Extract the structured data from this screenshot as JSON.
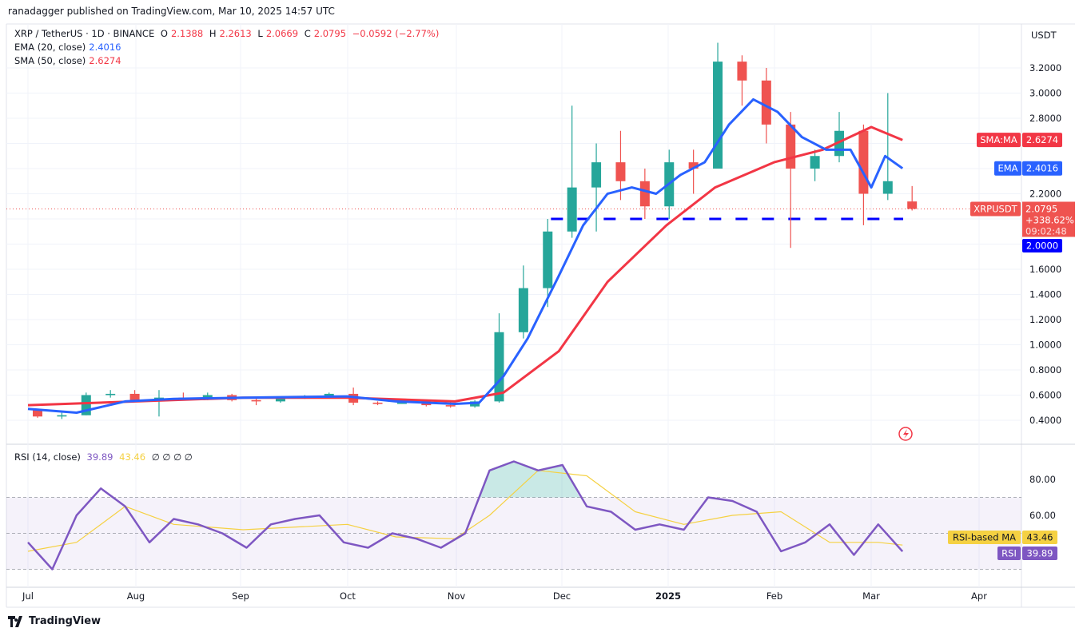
{
  "header": {
    "published": "ranadagger published on TradingView.com, Mar 10, 2025 14:57 UTC"
  },
  "legend": {
    "symbol": "XRP / TetherUS · 1D · BINANCE",
    "open_label": "O",
    "open": "2.1388",
    "high_label": "H",
    "high": "2.2613",
    "low_label": "L",
    "low": "2.0669",
    "close_label": "C",
    "close": "2.0795",
    "change": "−0.0592 (−2.77%)",
    "ema_label": "EMA (20, close)",
    "ema_value": "2.4016",
    "sma_label": "SMA (50, close)",
    "sma_value": "2.6274",
    "rsi_label": "RSI (14, close)",
    "rsi_value": "39.89",
    "rsi_ma_value": "43.46",
    "rsi_extra": "∅ ∅ ∅ ∅"
  },
  "price_axis": {
    "currency": "USDT",
    "ticks": [
      "3.2000",
      "3.0000",
      "2.8000",
      "2.2000",
      "1.6000",
      "1.4000",
      "1.2000",
      "1.0000",
      "0.8000",
      "0.6000",
      "0.4000"
    ],
    "tags": {
      "sma_label": "SMA:MA",
      "sma_value": "2.6274",
      "ema_label": "EMA",
      "ema_value": "2.4016",
      "symbol_label": "XRPUSDT",
      "price": "2.0795",
      "change_pct": "+338.62%",
      "countdown": "09:02:48",
      "support": "2.0000"
    }
  },
  "rsi_axis": {
    "ticks": [
      "80.00",
      "60.00"
    ],
    "ma_label": "RSI-based MA",
    "ma_value": "43.46",
    "rsi_label": "RSI",
    "rsi_value": "39.89"
  },
  "time_axis": {
    "labels": [
      "Jul",
      "Aug",
      "Sep",
      "Oct",
      "Nov",
      "Dec",
      "2025",
      "Feb",
      "Mar",
      "Apr"
    ]
  },
  "footer": {
    "brand": "TradingView"
  },
  "colors": {
    "up": "#26a69a",
    "down": "#ef5350",
    "ema": "#2962ff",
    "sma": "#f23645",
    "rsi": "#7e57c2",
    "rsi_ma": "#f5d142",
    "support": "#0000ff"
  },
  "chart_data": [
    {
      "type": "candlestick",
      "title": "XRP / TetherUS · 1D · BINANCE",
      "ylim": [
        0.3,
        3.5
      ],
      "xlim": [
        "2024-06-25",
        "2025-04-10"
      ],
      "grid": true,
      "scale": "linear",
      "candles_weekly_approx": [
        {
          "d": "2024-07-01",
          "o": 0.48,
          "h": 0.49,
          "l": 0.42,
          "c": 0.43
        },
        {
          "d": "2024-07-08",
          "o": 0.43,
          "h": 0.46,
          "l": 0.41,
          "c": 0.44
        },
        {
          "d": "2024-07-15",
          "o": 0.44,
          "h": 0.62,
          "l": 0.44,
          "c": 0.6
        },
        {
          "d": "2024-07-22",
          "o": 0.6,
          "h": 0.64,
          "l": 0.58,
          "c": 0.61
        },
        {
          "d": "2024-07-29",
          "o": 0.61,
          "h": 0.64,
          "l": 0.55,
          "c": 0.56
        },
        {
          "d": "2024-08-05",
          "o": 0.56,
          "h": 0.64,
          "l": 0.43,
          "c": 0.58
        },
        {
          "d": "2024-08-12",
          "o": 0.58,
          "h": 0.62,
          "l": 0.56,
          "c": 0.57
        },
        {
          "d": "2024-08-19",
          "o": 0.57,
          "h": 0.62,
          "l": 0.56,
          "c": 0.6
        },
        {
          "d": "2024-08-26",
          "o": 0.6,
          "h": 0.61,
          "l": 0.55,
          "c": 0.56
        },
        {
          "d": "2024-09-02",
          "o": 0.56,
          "h": 0.58,
          "l": 0.52,
          "c": 0.55
        },
        {
          "d": "2024-09-09",
          "o": 0.55,
          "h": 0.59,
          "l": 0.54,
          "c": 0.58
        },
        {
          "d": "2024-09-16",
          "o": 0.58,
          "h": 0.6,
          "l": 0.57,
          "c": 0.59
        },
        {
          "d": "2024-09-23",
          "o": 0.59,
          "h": 0.62,
          "l": 0.58,
          "c": 0.61
        },
        {
          "d": "2024-09-30",
          "o": 0.61,
          "h": 0.66,
          "l": 0.52,
          "c": 0.54
        },
        {
          "d": "2024-10-07",
          "o": 0.54,
          "h": 0.55,
          "l": 0.52,
          "c": 0.53
        },
        {
          "d": "2024-10-14",
          "o": 0.53,
          "h": 0.56,
          "l": 0.53,
          "c": 0.55
        },
        {
          "d": "2024-10-21",
          "o": 0.55,
          "h": 0.56,
          "l": 0.51,
          "c": 0.52
        },
        {
          "d": "2024-10-28",
          "o": 0.52,
          "h": 0.55,
          "l": 0.5,
          "c": 0.51
        },
        {
          "d": "2024-11-04",
          "o": 0.51,
          "h": 0.56,
          "l": 0.5,
          "c": 0.55
        },
        {
          "d": "2024-11-11",
          "o": 0.55,
          "h": 1.25,
          "l": 0.54,
          "c": 1.1
        },
        {
          "d": "2024-11-18",
          "o": 1.1,
          "h": 1.63,
          "l": 1.05,
          "c": 1.45
        },
        {
          "d": "2024-11-25",
          "o": 1.45,
          "h": 2.0,
          "l": 1.3,
          "c": 1.9
        },
        {
          "d": "2024-12-02",
          "o": 1.9,
          "h": 2.9,
          "l": 1.85,
          "c": 2.25
        },
        {
          "d": "2024-12-09",
          "o": 2.25,
          "h": 2.6,
          "l": 1.9,
          "c": 2.45
        },
        {
          "d": "2024-12-16",
          "o": 2.45,
          "h": 2.7,
          "l": 2.15,
          "c": 2.3
        },
        {
          "d": "2024-12-23",
          "o": 2.3,
          "h": 2.4,
          "l": 2.0,
          "c": 2.1
        },
        {
          "d": "2024-12-30",
          "o": 2.1,
          "h": 2.55,
          "l": 2.0,
          "c": 2.45
        },
        {
          "d": "2025-01-06",
          "o": 2.45,
          "h": 2.55,
          "l": 2.2,
          "c": 2.4
        },
        {
          "d": "2025-01-13",
          "o": 2.4,
          "h": 3.4,
          "l": 2.4,
          "c": 3.25
        },
        {
          "d": "2025-01-20",
          "o": 3.25,
          "h": 3.3,
          "l": 2.9,
          "c": 3.1
        },
        {
          "d": "2025-01-27",
          "o": 3.1,
          "h": 3.2,
          "l": 2.6,
          "c": 2.75
        },
        {
          "d": "2025-02-03",
          "o": 2.75,
          "h": 2.85,
          "l": 1.77,
          "c": 2.4
        },
        {
          "d": "2025-02-10",
          "o": 2.4,
          "h": 2.55,
          "l": 2.3,
          "c": 2.5
        },
        {
          "d": "2025-02-17",
          "o": 2.5,
          "h": 2.85,
          "l": 2.45,
          "c": 2.7
        },
        {
          "d": "2025-02-24",
          "o": 2.7,
          "h": 2.75,
          "l": 1.95,
          "c": 2.2
        },
        {
          "d": "2025-03-03",
          "o": 2.2,
          "h": 3.0,
          "l": 2.15,
          "c": 2.3
        },
        {
          "d": "2025-03-10",
          "o": 2.1388,
          "h": 2.2613,
          "l": 2.0669,
          "c": 2.0795
        }
      ],
      "series": [
        {
          "name": "EMA (20, close)",
          "points": [
            [
              "2024-07-01",
              0.49
            ],
            [
              "2024-07-15",
              0.46
            ],
            [
              "2024-07-29",
              0.55
            ],
            [
              "2024-08-12",
              0.57
            ],
            [
              "2024-09-01",
              0.58
            ],
            [
              "2024-10-01",
              0.59
            ],
            [
              "2024-10-15",
              0.55
            ],
            [
              "2024-11-01",
              0.53
            ],
            [
              "2024-11-08",
              0.54
            ],
            [
              "2024-11-15",
              0.75
            ],
            [
              "2024-11-22",
              1.05
            ],
            [
              "2024-12-01",
              1.55
            ],
            [
              "2024-12-08",
              1.95
            ],
            [
              "2024-12-15",
              2.2
            ],
            [
              "2024-12-22",
              2.25
            ],
            [
              "2024-12-29",
              2.2
            ],
            [
              "2025-01-05",
              2.35
            ],
            [
              "2025-01-12",
              2.45
            ],
            [
              "2025-01-19",
              2.75
            ],
            [
              "2025-01-26",
              2.95
            ],
            [
              "2025-02-02",
              2.85
            ],
            [
              "2025-02-09",
              2.65
            ],
            [
              "2025-02-16",
              2.55
            ],
            [
              "2025-02-23",
              2.55
            ],
            [
              "2025-03-01",
              2.25
            ],
            [
              "2025-03-05",
              2.5
            ],
            [
              "2025-03-10",
              2.4016
            ]
          ]
        },
        {
          "name": "SMA (50, close)",
          "points": [
            [
              "2024-07-01",
              0.52
            ],
            [
              "2024-08-01",
              0.55
            ],
            [
              "2024-09-01",
              0.58
            ],
            [
              "2024-10-01",
              0.58
            ],
            [
              "2024-11-01",
              0.55
            ],
            [
              "2024-11-15",
              0.62
            ],
            [
              "2024-12-01",
              0.95
            ],
            [
              "2024-12-15",
              1.5
            ],
            [
              "2025-01-01",
              1.95
            ],
            [
              "2025-01-15",
              2.25
            ],
            [
              "2025-02-01",
              2.45
            ],
            [
              "2025-02-15",
              2.55
            ],
            [
              "2025-03-01",
              2.73
            ],
            [
              "2025-03-10",
              2.6274
            ]
          ]
        }
      ],
      "hlines": [
        {
          "value": 2.0,
          "style": "dashed",
          "start": "2024-12-01"
        },
        {
          "value": 2.0795,
          "style": "dotted"
        }
      ]
    },
    {
      "type": "line",
      "title": "RSI (14, close)",
      "ylim": [
        20,
        100
      ],
      "bands": [
        30,
        50,
        70
      ],
      "series": [
        {
          "name": "RSI",
          "points": [
            [
              "2024-07-01",
              45
            ],
            [
              "2024-07-08",
              30
            ],
            [
              "2024-07-15",
              60
            ],
            [
              "2024-07-22",
              75
            ],
            [
              "2024-07-29",
              65
            ],
            [
              "2024-08-05",
              45
            ],
            [
              "2024-08-12",
              58
            ],
            [
              "2024-08-19",
              55
            ],
            [
              "2024-08-26",
              50
            ],
            [
              "2024-09-02",
              42
            ],
            [
              "2024-09-09",
              55
            ],
            [
              "2024-09-16",
              58
            ],
            [
              "2024-09-23",
              60
            ],
            [
              "2024-09-30",
              45
            ],
            [
              "2024-10-07",
              42
            ],
            [
              "2024-10-14",
              50
            ],
            [
              "2024-10-21",
              47
            ],
            [
              "2024-10-28",
              42
            ],
            [
              "2024-11-04",
              50
            ],
            [
              "2024-11-11",
              85
            ],
            [
              "2024-11-18",
              90
            ],
            [
              "2024-11-25",
              85
            ],
            [
              "2024-12-02",
              88
            ],
            [
              "2024-12-09",
              65
            ],
            [
              "2024-12-16",
              62
            ],
            [
              "2024-12-23",
              52
            ],
            [
              "2024-12-30",
              55
            ],
            [
              "2025-01-06",
              52
            ],
            [
              "2025-01-13",
              70
            ],
            [
              "2025-01-20",
              68
            ],
            [
              "2025-01-27",
              62
            ],
            [
              "2025-02-03",
              40
            ],
            [
              "2025-02-10",
              45
            ],
            [
              "2025-02-17",
              55
            ],
            [
              "2025-02-24",
              38
            ],
            [
              "2025-03-03",
              55
            ],
            [
              "2025-03-10",
              39.89
            ]
          ]
        },
        {
          "name": "RSI-based MA",
          "points": [
            [
              "2024-07-01",
              40
            ],
            [
              "2024-07-15",
              45
            ],
            [
              "2024-07-29",
              65
            ],
            [
              "2024-08-12",
              55
            ],
            [
              "2024-09-01",
              52
            ],
            [
              "2024-10-01",
              55
            ],
            [
              "2024-10-15",
              48
            ],
            [
              "2024-11-01",
              47
            ],
            [
              "2024-11-11",
              60
            ],
            [
              "2024-11-25",
              85
            ],
            [
              "2024-12-09",
              82
            ],
            [
              "2024-12-23",
              62
            ],
            [
              "2025-01-06",
              55
            ],
            [
              "2025-01-20",
              60
            ],
            [
              "2025-02-03",
              62
            ],
            [
              "2025-02-17",
              45
            ],
            [
              "2025-03-03",
              45
            ],
            [
              "2025-03-10",
              43.46
            ]
          ]
        }
      ]
    }
  ]
}
